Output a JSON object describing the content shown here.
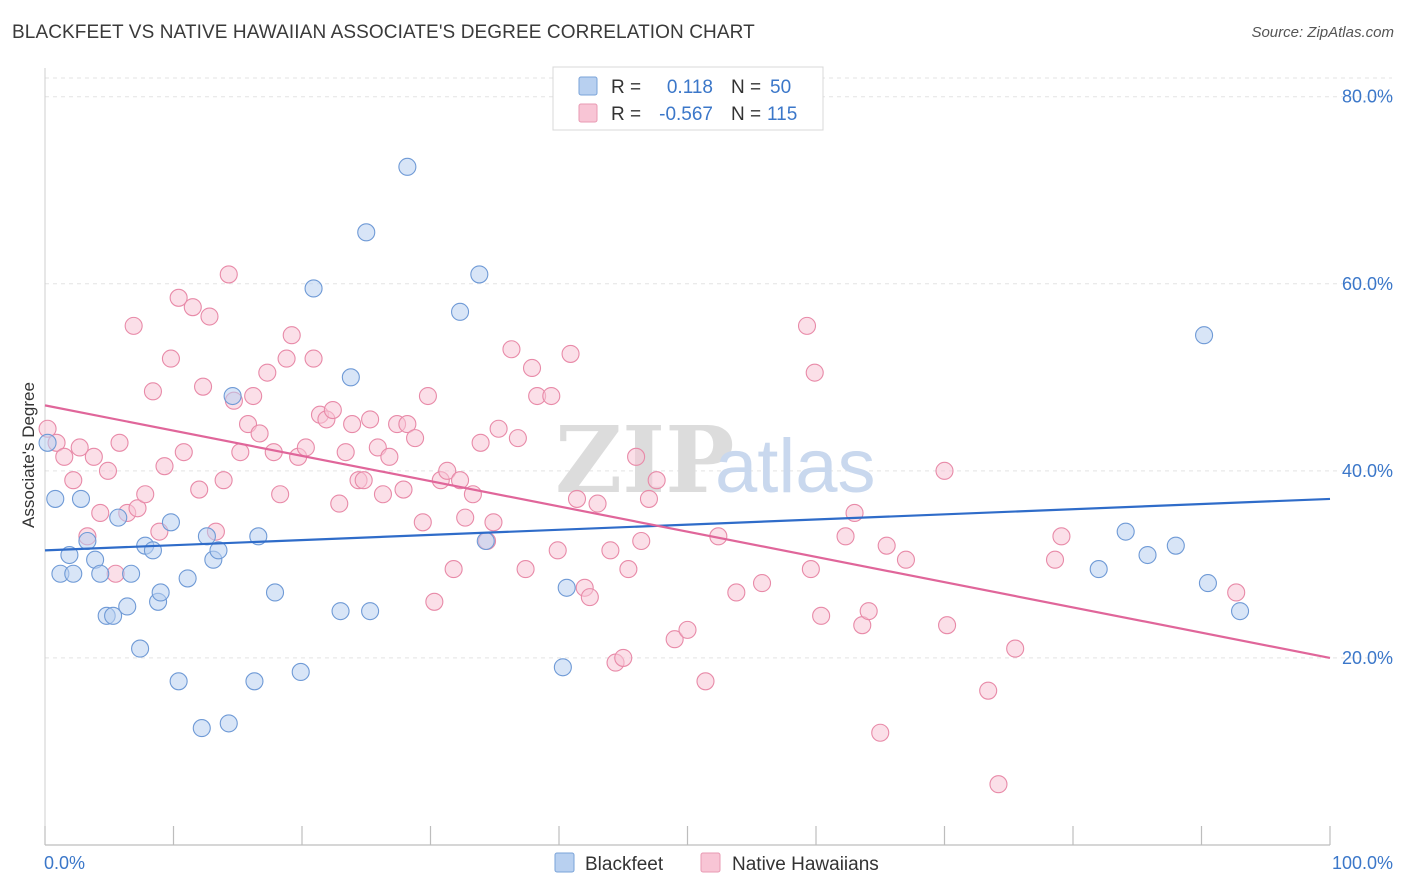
{
  "header": {
    "title": "BLACKFEET VS NATIVE HAWAIIAN ASSOCIATE'S DEGREE CORRELATION CHART",
    "source": "Source: ZipAtlas.com"
  },
  "watermark": {
    "zip": "ZIP",
    "atlas": "atlas"
  },
  "legend_top": {
    "rows": [
      {
        "r_label": "R =",
        "r_value": "0.118",
        "n_label": "N =",
        "n_value": "50",
        "color": "#b8d0f0",
        "stroke": "#7aa3d8"
      },
      {
        "r_label": "R =",
        "r_value": "-0.567",
        "n_label": "N =",
        "n_value": "115",
        "color": "#f8c5d5",
        "stroke": "#e89ab3"
      }
    ]
  },
  "legend_bottom": {
    "items": [
      {
        "label": "Blackfeet",
        "color": "#b8d0f0",
        "stroke": "#7aa3d8"
      },
      {
        "label": "Native Hawaiians",
        "color": "#f8c5d5",
        "stroke": "#e89ab3"
      }
    ]
  },
  "chart_data": {
    "type": "scatter",
    "title": "BLACKFEET VS NATIVE HAWAIIAN ASSOCIATE'S DEGREE CORRELATION CHART",
    "xlabel": "",
    "ylabel": "Associate's Degree",
    "xlim": [
      0,
      100
    ],
    "ylim": [
      0,
      82
    ],
    "x_tick_labels": [
      "0.0%",
      "100.0%"
    ],
    "y_ticks": [
      20,
      40,
      60,
      80
    ],
    "y_tick_labels": [
      "20.0%",
      "40.0%",
      "60.0%",
      "80.0%"
    ],
    "grid": true,
    "legend_placement": "bottom",
    "series": [
      {
        "name": "Blackfeet",
        "color": "#6f9ad6",
        "fill": "#b8d0f0",
        "trend": {
          "x": [
            0,
            100
          ],
          "y": [
            31.5,
            37.0
          ],
          "color": "#2f6cc9"
        },
        "points": [
          [
            0.2,
            43.0
          ],
          [
            0.8,
            37.0
          ],
          [
            1.2,
            29.0
          ],
          [
            1.9,
            31.0
          ],
          [
            2.2,
            29.0
          ],
          [
            2.8,
            37.0
          ],
          [
            3.3,
            32.5
          ],
          [
            3.9,
            30.5
          ],
          [
            4.3,
            29.0
          ],
          [
            4.8,
            24.5
          ],
          [
            5.3,
            24.5
          ],
          [
            5.7,
            35.0
          ],
          [
            6.4,
            25.5
          ],
          [
            6.7,
            29.0
          ],
          [
            7.4,
            21.0
          ],
          [
            7.8,
            32.0
          ],
          [
            8.4,
            31.5
          ],
          [
            8.8,
            26.0
          ],
          [
            9.0,
            27.0
          ],
          [
            9.8,
            34.5
          ],
          [
            10.4,
            17.5
          ],
          [
            11.1,
            28.5
          ],
          [
            12.2,
            12.5
          ],
          [
            12.6,
            33.0
          ],
          [
            13.1,
            30.5
          ],
          [
            13.5,
            31.5
          ],
          [
            14.3,
            13.0
          ],
          [
            14.6,
            48.0
          ],
          [
            16.3,
            17.5
          ],
          [
            16.6,
            33.0
          ],
          [
            17.9,
            27.0
          ],
          [
            19.9,
            18.5
          ],
          [
            20.9,
            59.5
          ],
          [
            23.0,
            25.0
          ],
          [
            23.8,
            50.0
          ],
          [
            25.0,
            65.5
          ],
          [
            25.3,
            25.0
          ],
          [
            28.2,
            72.5
          ],
          [
            32.3,
            57.0
          ],
          [
            33.8,
            61.0
          ],
          [
            34.3,
            32.5
          ],
          [
            40.3,
            19.0
          ],
          [
            40.6,
            27.5
          ],
          [
            82.0,
            29.5
          ],
          [
            84.1,
            33.5
          ],
          [
            85.8,
            31.0
          ],
          [
            88.0,
            32.0
          ],
          [
            90.2,
            54.5
          ],
          [
            90.5,
            28.0
          ],
          [
            93.0,
            25.0
          ]
        ]
      },
      {
        "name": "Native Hawaiians",
        "color": "#e88aa8",
        "fill": "#f8c5d5",
        "trend": {
          "x": [
            0,
            100
          ],
          "y": [
            47.0,
            20.0
          ],
          "color": "#e0669a"
        },
        "points": [
          [
            0.2,
            44.5
          ],
          [
            0.9,
            43.0
          ],
          [
            1.5,
            41.5
          ],
          [
            2.2,
            39.0
          ],
          [
            2.7,
            42.5
          ],
          [
            3.3,
            33.0
          ],
          [
            3.8,
            41.5
          ],
          [
            4.3,
            35.5
          ],
          [
            4.9,
            40.0
          ],
          [
            5.5,
            29.0
          ],
          [
            5.8,
            43.0
          ],
          [
            6.4,
            35.5
          ],
          [
            6.9,
            55.5
          ],
          [
            7.2,
            36.0
          ],
          [
            7.8,
            37.5
          ],
          [
            8.4,
            48.5
          ],
          [
            8.9,
            33.5
          ],
          [
            9.3,
            40.5
          ],
          [
            9.8,
            52.0
          ],
          [
            10.4,
            58.5
          ],
          [
            10.8,
            42.0
          ],
          [
            11.5,
            57.5
          ],
          [
            12.0,
            38.0
          ],
          [
            12.3,
            49.0
          ],
          [
            12.8,
            56.5
          ],
          [
            13.3,
            33.5
          ],
          [
            13.9,
            39.0
          ],
          [
            14.3,
            61.0
          ],
          [
            14.7,
            47.5
          ],
          [
            15.2,
            42.0
          ],
          [
            15.8,
            45.0
          ],
          [
            16.2,
            48.0
          ],
          [
            16.7,
            44.0
          ],
          [
            17.3,
            50.5
          ],
          [
            17.8,
            42.0
          ],
          [
            18.3,
            37.5
          ],
          [
            18.8,
            52.0
          ],
          [
            19.2,
            54.5
          ],
          [
            19.7,
            41.5
          ],
          [
            20.3,
            42.5
          ],
          [
            20.9,
            52.0
          ],
          [
            21.4,
            46.0
          ],
          [
            21.9,
            45.5
          ],
          [
            22.4,
            46.5
          ],
          [
            22.9,
            36.5
          ],
          [
            23.4,
            42.0
          ],
          [
            23.9,
            45.0
          ],
          [
            24.4,
            39.0
          ],
          [
            24.8,
            39.0
          ],
          [
            25.3,
            45.5
          ],
          [
            25.9,
            42.5
          ],
          [
            26.3,
            37.5
          ],
          [
            26.8,
            41.5
          ],
          [
            27.4,
            45.0
          ],
          [
            27.9,
            38.0
          ],
          [
            28.2,
            45.0
          ],
          [
            28.8,
            43.5
          ],
          [
            29.4,
            34.5
          ],
          [
            29.8,
            48.0
          ],
          [
            30.3,
            26.0
          ],
          [
            30.8,
            39.0
          ],
          [
            31.3,
            40.0
          ],
          [
            31.8,
            29.5
          ],
          [
            32.3,
            39.0
          ],
          [
            32.7,
            35.0
          ],
          [
            33.3,
            37.5
          ],
          [
            33.9,
            43.0
          ],
          [
            34.4,
            32.5
          ],
          [
            34.9,
            34.5
          ],
          [
            35.3,
            44.5
          ],
          [
            36.3,
            53.0
          ],
          [
            36.8,
            43.5
          ],
          [
            37.4,
            29.5
          ],
          [
            37.9,
            51.0
          ],
          [
            38.3,
            48.0
          ],
          [
            39.4,
            48.0
          ],
          [
            39.9,
            31.5
          ],
          [
            40.9,
            52.5
          ],
          [
            41.4,
            37.0
          ],
          [
            42.0,
            27.5
          ],
          [
            42.4,
            26.5
          ],
          [
            43.0,
            36.5
          ],
          [
            44.0,
            31.5
          ],
          [
            44.4,
            19.5
          ],
          [
            45.0,
            20.0
          ],
          [
            45.4,
            29.5
          ],
          [
            46.0,
            41.5
          ],
          [
            46.4,
            32.5
          ],
          [
            47.0,
            37.0
          ],
          [
            47.6,
            39.0
          ],
          [
            49.0,
            22.0
          ],
          [
            50.0,
            23.0
          ],
          [
            51.4,
            17.5
          ],
          [
            52.4,
            33.0
          ],
          [
            53.8,
            27.0
          ],
          [
            55.8,
            28.0
          ],
          [
            59.6,
            29.5
          ],
          [
            59.3,
            55.5
          ],
          [
            59.9,
            50.5
          ],
          [
            60.4,
            24.5
          ],
          [
            62.3,
            33.0
          ],
          [
            63.0,
            35.5
          ],
          [
            63.6,
            23.5
          ],
          [
            64.1,
            25.0
          ],
          [
            65.0,
            12.0
          ],
          [
            65.5,
            32.0
          ],
          [
            67.0,
            30.5
          ],
          [
            70.2,
            23.5
          ],
          [
            73.4,
            16.5
          ],
          [
            75.5,
            21.0
          ],
          [
            74.2,
            6.5
          ],
          [
            78.6,
            30.5
          ],
          [
            79.1,
            33.0
          ],
          [
            92.7,
            27.0
          ],
          [
            70.0,
            40.0
          ]
        ]
      }
    ]
  }
}
